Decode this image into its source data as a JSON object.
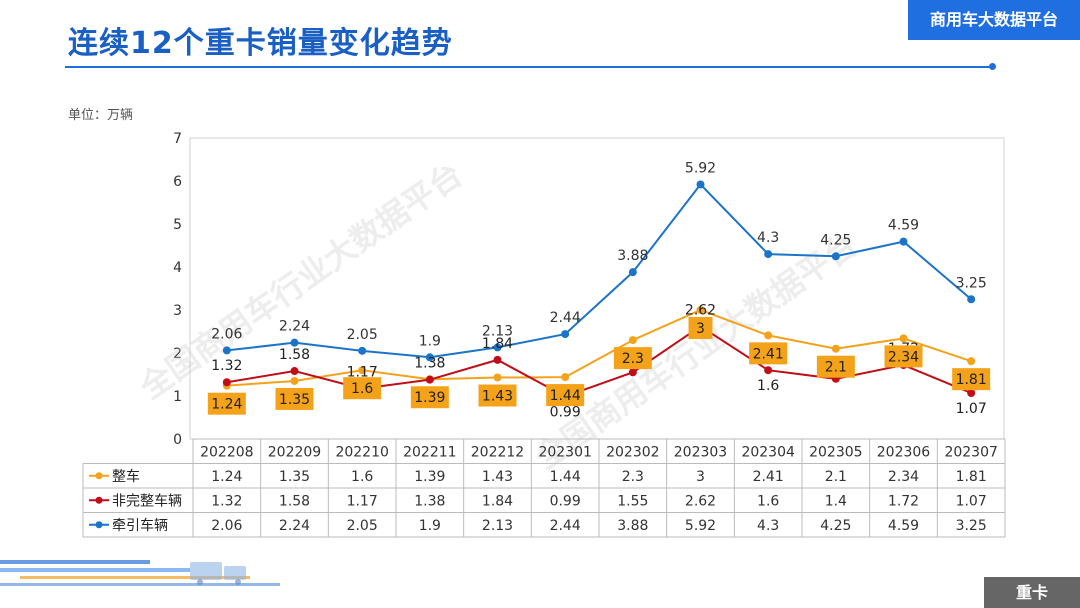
{
  "header": {
    "title": "连续12个重卡销量变化趋势",
    "brand": "商用车大数据平台"
  },
  "unit_label": "单位：万辆",
  "footer_tag": "重卡",
  "watermark": "全国商用车行业大数据平台",
  "chart_data": {
    "type": "line",
    "categories": [
      "202208",
      "202209",
      "202210",
      "202211",
      "202212",
      "202301",
      "202302",
      "202303",
      "202304",
      "202305",
      "202306",
      "202307"
    ],
    "series": [
      {
        "name": "整车",
        "color": "#f5a21b",
        "values": [
          1.24,
          1.35,
          1.6,
          1.39,
          1.43,
          1.44,
          2.3,
          3,
          2.41,
          2.1,
          2.34,
          1.81
        ]
      },
      {
        "name": "非完整车辆",
        "color": "#c00d17",
        "values": [
          1.32,
          1.58,
          1.17,
          1.38,
          1.84,
          0.99,
          1.55,
          2.62,
          1.6,
          1.4,
          1.72,
          1.07
        ]
      },
      {
        "name": "牵引车辆",
        "color": "#1c74c8",
        "values": [
          2.06,
          2.24,
          2.05,
          1.9,
          2.13,
          2.44,
          3.88,
          5.92,
          4.3,
          4.25,
          4.59,
          3.25
        ]
      }
    ],
    "yticks": [
      0,
      1,
      2,
      3,
      4,
      5,
      6,
      7
    ],
    "ylim": [
      0,
      7
    ],
    "grid": false,
    "legend": "table-below"
  }
}
